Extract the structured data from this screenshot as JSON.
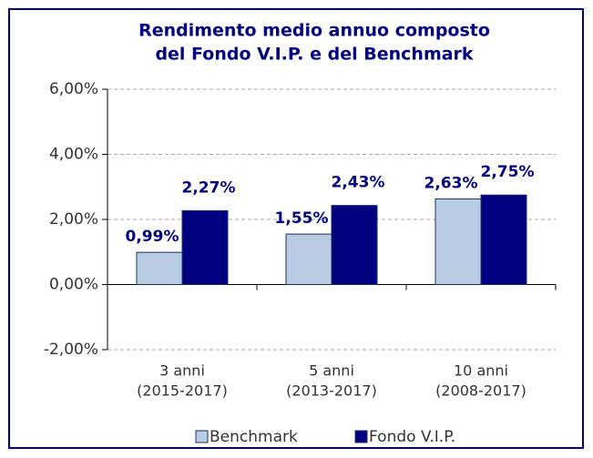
{
  "chart_data": {
    "type": "bar",
    "title": [
      "Rendimento medio annuo composto",
      "del Fondo V.I.P. e del Benchmark"
    ],
    "categories": [
      [
        "3 anni",
        "(2015-2017)"
      ],
      [
        "5 anni",
        "(2013-2017)"
      ],
      [
        "10 anni",
        "(2008-2017)"
      ]
    ],
    "series": [
      {
        "name": "Benchmark",
        "color": "#b8cce4",
        "values": [
          0.99,
          1.55,
          2.63
        ],
        "value_labels": [
          "0,99%",
          "1,55%",
          "2,63%"
        ]
      },
      {
        "name": "Fondo V.I.P.",
        "color": "#000080",
        "values": [
          2.27,
          2.43,
          2.75
        ],
        "value_labels": [
          "2,27%",
          "2,43%",
          "2,75%"
        ]
      }
    ],
    "ylim": [
      -2,
      6
    ],
    "yticks": [
      {
        "value": -2,
        "label": "-2,00%"
      },
      {
        "value": 0,
        "label": "0,00%"
      },
      {
        "value": 2,
        "label": "2,00%"
      },
      {
        "value": 4,
        "label": "4,00%"
      },
      {
        "value": 6,
        "label": "6,00%"
      }
    ],
    "grid": true,
    "legend": "bottom"
  }
}
